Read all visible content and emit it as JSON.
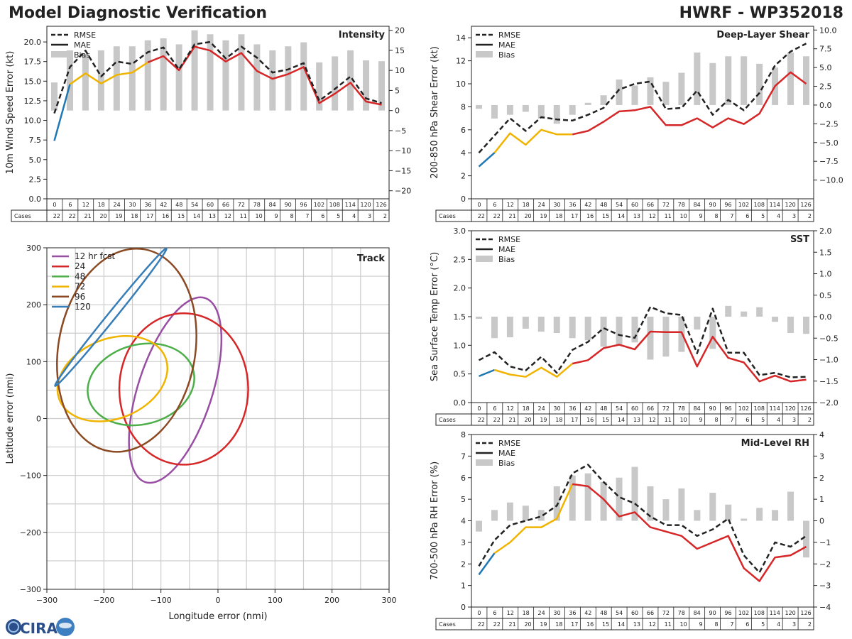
{
  "header": {
    "title_left": "Model Diagnostic Verification",
    "title_right": "HWRF - WP352018"
  },
  "common": {
    "hours": [
      "0",
      "6",
      "12",
      "18",
      "24",
      "30",
      "36",
      "42",
      "48",
      "54",
      "60",
      "66",
      "72",
      "78",
      "84",
      "90",
      "96",
      "102",
      "108",
      "114",
      "120",
      "126"
    ],
    "cases": [
      "22",
      "22",
      "21",
      "20",
      "19",
      "18",
      "17",
      "16",
      "15",
      "14",
      "13",
      "12",
      "11",
      "10",
      "9",
      "8",
      "7",
      "6",
      "5",
      "4",
      "3",
      "2"
    ],
    "cases_label": "Cases",
    "legend": [
      "RMSE",
      "MAE",
      "Bias"
    ]
  },
  "colors": {
    "rmse": "#222222",
    "mae": "#d62728",
    "early_blue": "#1f77b4",
    "early_yellow": "#f0b400",
    "bias": "#c8c8c8"
  },
  "logo": {
    "text": "CIRA"
  },
  "chart_data": [
    {
      "id": "intensity",
      "type": "line",
      "title": "Intensity",
      "ylabel": "10m Wind Speed Error (kt)",
      "ylim": [
        0,
        22
      ],
      "yticks": [
        "0.0",
        "2.5",
        "5.0",
        "7.5",
        "10.0",
        "12.5",
        "15.0",
        "17.5",
        "20.0"
      ],
      "y2lim": [
        -22,
        21
      ],
      "y2ticks": [
        "−20",
        "−15",
        "−10",
        "−5",
        "0",
        "5",
        "10",
        "15",
        "20"
      ],
      "rmse": [
        10.9,
        16.8,
        18.9,
        15.6,
        17.5,
        17.2,
        18.7,
        19.3,
        16.5,
        19.7,
        20.0,
        17.9,
        19.4,
        18.0,
        16.1,
        16.5,
        17.3,
        12.5,
        14.0,
        15.6,
        12.8,
        12.2
      ],
      "mae": [
        7.4,
        14.6,
        16.0,
        14.7,
        15.8,
        16.1,
        17.4,
        18.2,
        16.4,
        19.4,
        18.9,
        17.5,
        18.6,
        16.3,
        15.3,
        15.9,
        16.8,
        12.2,
        13.4,
        14.8,
        12.4,
        12.0
      ],
      "bias": [
        7,
        15,
        14,
        15,
        16,
        16,
        17.5,
        18,
        16.5,
        20,
        19,
        17.5,
        19,
        16.5,
        15,
        16,
        17,
        12,
        13.5,
        15,
        12.5,
        12.3
      ]
    },
    {
      "id": "shear",
      "type": "line",
      "title": "Deep-Layer Shear",
      "ylabel": "200-850 hPa Shear Error (kt)",
      "ylim": [
        0,
        15
      ],
      "yticks": [
        "0",
        "2",
        "4",
        "6",
        "8",
        "10",
        "12",
        "14"
      ],
      "y2lim": [
        -12.5,
        10.5
      ],
      "y2ticks": [
        "−10.0",
        "−7.5",
        "−5.0",
        "−2.5",
        "0.0",
        "2.5",
        "5.0",
        "7.5",
        "10.0"
      ],
      "rmse": [
        4.0,
        5.5,
        7.0,
        5.9,
        7.1,
        6.9,
        6.8,
        7.3,
        7.9,
        9.5,
        10.0,
        10.2,
        7.8,
        7.9,
        9.4,
        7.3,
        8.6,
        7.7,
        9.2,
        11.6,
        12.8,
        13.5
      ],
      "mae": [
        2.8,
        4.0,
        5.7,
        4.7,
        6.0,
        5.6,
        5.6,
        5.9,
        6.7,
        7.6,
        7.7,
        8.0,
        6.4,
        6.4,
        7.0,
        6.2,
        7.0,
        6.5,
        7.4,
        9.8,
        11.0,
        10.0
      ],
      "bias": [
        -0.5,
        -1.8,
        -1.3,
        -0.9,
        -1.8,
        -2.5,
        -1.3,
        0.3,
        1.3,
        3.4,
        2.6,
        3.7,
        3.1,
        4.3,
        7.0,
        5.6,
        6.5,
        6.5,
        5.5,
        5.0,
        7.0,
        6.5
      ]
    },
    {
      "id": "sst",
      "type": "line",
      "title": "SST",
      "ylabel": "Sea Surface Temp Error (°C)",
      "ylim": [
        0,
        3
      ],
      "yticks": [
        "0.0",
        "0.5",
        "1.0",
        "1.5",
        "2.0",
        "2.5",
        "3.0"
      ],
      "y2lim": [
        -2,
        2
      ],
      "y2ticks": [
        "−2.0",
        "−1.5",
        "−1.0",
        "−0.5",
        "0.0",
        "0.5",
        "1.0",
        "1.5",
        "2.0"
      ],
      "rmse": [
        0.74,
        0.88,
        0.63,
        0.56,
        0.8,
        0.52,
        0.92,
        1.06,
        1.3,
        1.18,
        1.13,
        1.67,
        1.56,
        1.53,
        0.86,
        1.64,
        0.87,
        0.87,
        0.48,
        0.52,
        0.44,
        0.45
      ],
      "mae": [
        0.46,
        0.57,
        0.49,
        0.45,
        0.61,
        0.45,
        0.68,
        0.74,
        0.95,
        1.01,
        0.93,
        1.24,
        1.23,
        1.23,
        0.63,
        1.15,
        0.78,
        0.7,
        0.37,
        0.47,
        0.37,
        0.4
      ],
      "bias": [
        -0.05,
        -0.5,
        -0.48,
        -0.28,
        -0.35,
        -0.38,
        -0.5,
        -0.55,
        -0.7,
        -0.65,
        -0.6,
        -1.0,
        -0.93,
        -0.82,
        -0.3,
        -0.75,
        0.25,
        0.12,
        0.22,
        -0.12,
        -0.38,
        -0.4
      ]
    },
    {
      "id": "rh",
      "type": "line",
      "title": "Mid-Level RH",
      "ylabel": "700-500 hPa RH Error (%)",
      "ylim": [
        0,
        8
      ],
      "yticks": [
        "0",
        "1",
        "2",
        "3",
        "4",
        "5",
        "6",
        "7",
        "8"
      ],
      "y2lim": [
        -4,
        4
      ],
      "y2ticks": [
        "−4",
        "−3",
        "−2",
        "−1",
        "0",
        "1",
        "2",
        "3",
        "4"
      ],
      "rmse": [
        1.9,
        3.1,
        3.8,
        4.0,
        4.2,
        4.7,
        6.2,
        6.6,
        5.8,
        5.1,
        4.8,
        4.2,
        3.8,
        3.8,
        3.3,
        3.6,
        4.1,
        2.4,
        1.6,
        3.0,
        2.8,
        3.3
      ],
      "mae": [
        1.5,
        2.5,
        3.0,
        3.7,
        3.7,
        4.1,
        5.7,
        5.6,
        5.0,
        4.2,
        4.4,
        3.7,
        3.5,
        3.3,
        2.7,
        3.0,
        3.3,
        1.8,
        1.2,
        2.3,
        2.4,
        2.8
      ],
      "bias": [
        -0.5,
        0.5,
        0.85,
        0.7,
        0.5,
        1.6,
        2.1,
        2.2,
        1.8,
        2.0,
        2.5,
        1.6,
        1.0,
        1.5,
        0.5,
        1.3,
        0.75,
        0.1,
        0.6,
        0.5,
        1.35,
        -1.7
      ]
    },
    {
      "id": "track",
      "type": "scatter",
      "title": "Track",
      "xlabel": "Longitude error (nmi)",
      "ylabel": "Latitude error (nmi)",
      "xlim": [
        -300,
        300
      ],
      "ylim": [
        -300,
        300
      ],
      "xticks": [
        "−300",
        "−200",
        "−100",
        "0",
        "100",
        "200",
        "300"
      ],
      "yticks": [
        "300",
        "200",
        "100",
        "0",
        "−100",
        "−200",
        "−300"
      ],
      "ellipses": [
        {
          "name": "12 hr fcst",
          "color": "#984ea3",
          "cx": -75,
          "cy": 50,
          "rx": 65,
          "ry": 170,
          "angle": 18
        },
        {
          "name": "24",
          "color": "#d62728",
          "cx": -60,
          "cy": 52,
          "rx": 113,
          "ry": 133,
          "angle": 0
        },
        {
          "name": "48",
          "color": "#4daf4a",
          "cx": -135,
          "cy": 60,
          "rx": 95,
          "ry": 70,
          "angle": -15
        },
        {
          "name": "72",
          "color": "#f0b400",
          "cx": -185,
          "cy": 70,
          "rx": 100,
          "ry": 70,
          "angle": -22
        },
        {
          "name": "96",
          "color": "#8b4a23",
          "cx": -160,
          "cy": 120,
          "rx": 120,
          "ry": 180,
          "angle": 10
        },
        {
          "name": "120",
          "color": "#377eb8",
          "cx": -188,
          "cy": 178,
          "rx": 155,
          "ry": 7,
          "angle": -51
        }
      ]
    }
  ]
}
